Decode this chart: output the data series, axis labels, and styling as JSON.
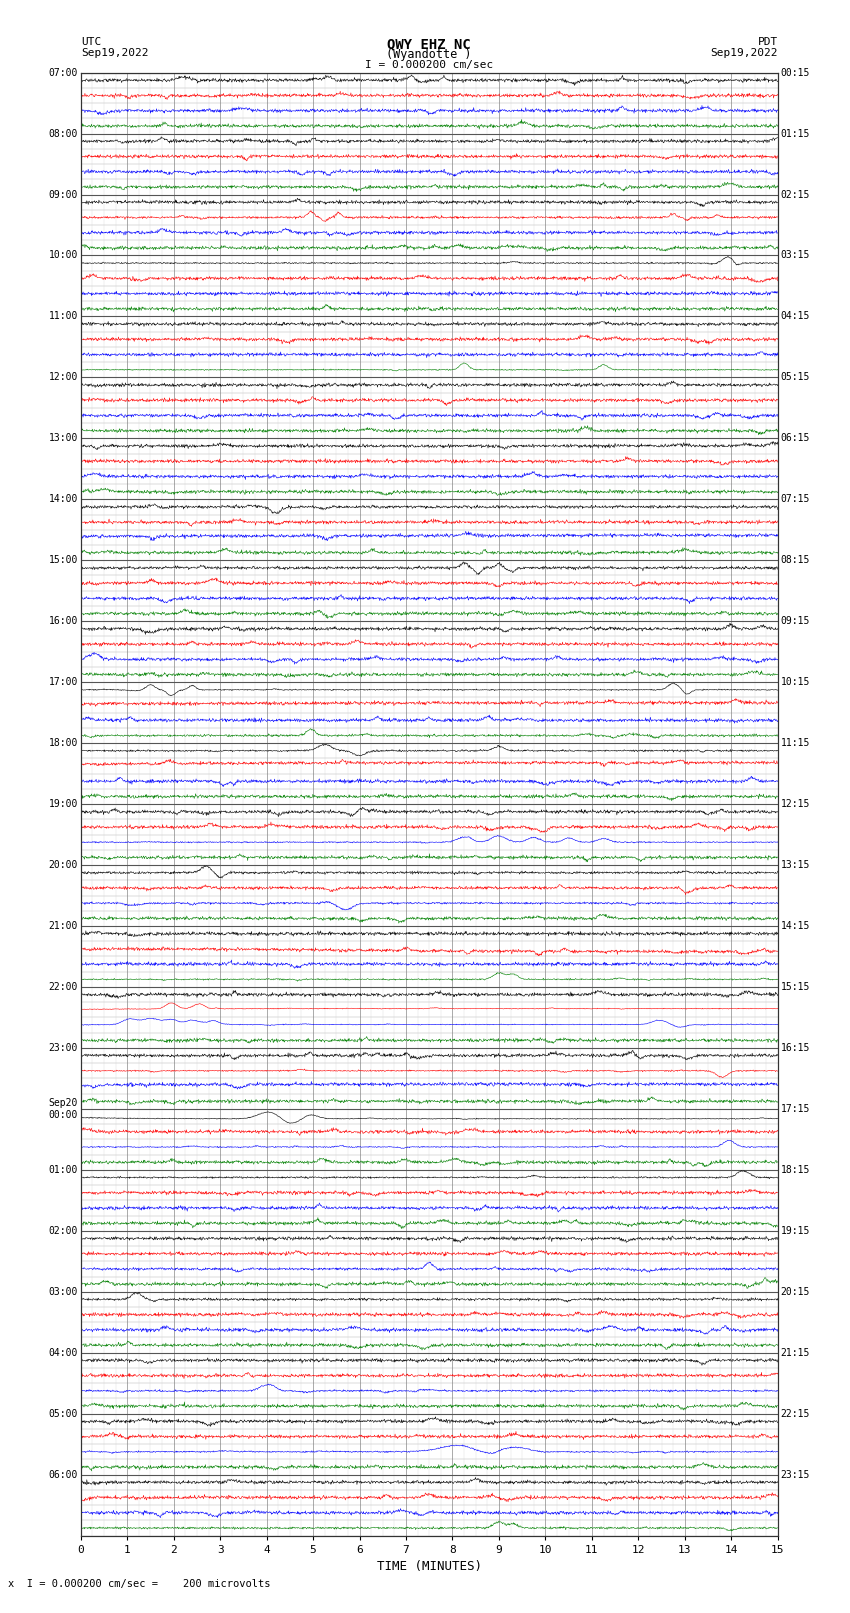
{
  "title_line1": "QWY EHZ NC",
  "title_line2": "(Wyandotte )",
  "scale_text": "I = 0.000200 cm/sec",
  "utc_label": "UTC",
  "utc_date": "Sep19,2022",
  "pdt_label": "PDT",
  "pdt_date": "Sep19,2022",
  "bottom_label": "x  I = 0.000200 cm/sec =    200 microvolts",
  "xlabel": "TIME (MINUTES)",
  "left_times": [
    "07:00",
    "08:00",
    "09:00",
    "10:00",
    "11:00",
    "12:00",
    "13:00",
    "14:00",
    "15:00",
    "16:00",
    "17:00",
    "18:00",
    "19:00",
    "20:00",
    "21:00",
    "22:00",
    "23:00",
    "Sep20\n00:00",
    "01:00",
    "02:00",
    "03:00",
    "04:00",
    "05:00",
    "06:00"
  ],
  "right_times": [
    "00:15",
    "01:15",
    "02:15",
    "03:15",
    "04:15",
    "05:15",
    "06:15",
    "07:15",
    "08:15",
    "09:15",
    "10:15",
    "11:15",
    "12:15",
    "13:15",
    "14:15",
    "15:15",
    "16:15",
    "17:15",
    "18:15",
    "19:15",
    "20:15",
    "21:15",
    "22:15",
    "23:15"
  ],
  "n_hours": 24,
  "traces_per_hour": 4,
  "n_minutes": 15,
  "bg_color": "#ffffff",
  "grid_color": "#aaaaaa",
  "trace_colors": [
    "#000000",
    "#ff0000",
    "#0000ff",
    "#008000"
  ],
  "figsize": [
    8.5,
    16.13
  ],
  "dpi": 100
}
